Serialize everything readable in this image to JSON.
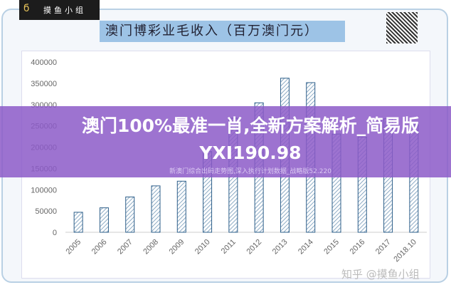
{
  "logo": {
    "text": "摸鱼小组"
  },
  "chart_data": {
    "type": "bar",
    "title": "澳门博彩业毛收入（百万澳门元）",
    "categories": [
      "2005",
      "2006",
      "2007",
      "2008",
      "2009",
      "2010",
      "2011",
      "2012",
      "2013",
      "2014",
      "2015",
      "2016",
      "2017",
      "2018.10"
    ],
    "values": [
      47000,
      57500,
      83000,
      109000,
      120000,
      189600,
      267900,
      304100,
      361900,
      351500,
      230800,
      223800,
      266600,
      253000
    ],
    "ylim": [
      0,
      400000
    ],
    "yticks": [
      "0",
      "50000",
      "100000",
      "150000",
      "200000",
      "250000",
      "300000",
      "350000",
      "400000"
    ],
    "xlabel": "",
    "ylabel": "",
    "grid": false,
    "bar_color": "#2e5f8a"
  },
  "overlay": {
    "headline": "澳门100%最准一肖,全新方案解析_简易版YXI190.98",
    "subline": "新澳门综合出码走势图,深入执行计划数据_战略版52.220",
    "color": "#8c5ac8"
  },
  "watermark": "知乎 @摸鱼小组"
}
